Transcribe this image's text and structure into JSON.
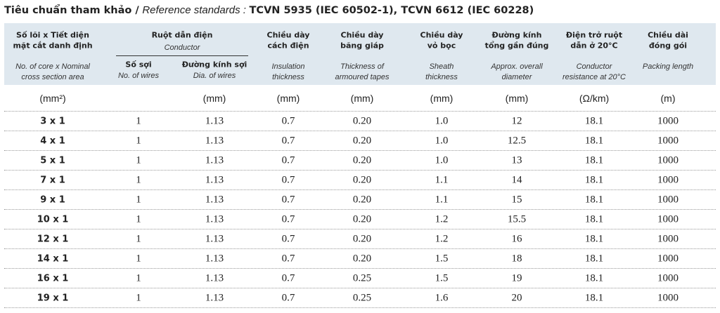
{
  "header": {
    "title": {
      "label": "Tiêu chuẩn tham khảo /",
      "label_en": "Reference standards :",
      "standards": "TCVN 5935 (IEC 60502-1), TCVN 6612 (IEC 60228)"
    }
  },
  "table": {
    "group": {
      "title": "Ruột dẫn điện",
      "subtitle": "Conductor"
    },
    "columns": [
      {
        "title": [
          "Số lõi x Tiết diện",
          "mặt cắt danh định"
        ],
        "subtitle": [
          "No. of core x Nominal",
          "cross section area"
        ],
        "unit": "(mm²)"
      },
      {
        "title": [
          "Số sợi"
        ],
        "subtitle": [
          "No. of wires"
        ]
      },
      {
        "title": [
          "Đường kính sợi"
        ],
        "subtitle": [
          "Dia. of wires"
        ],
        "unit": "(mm)"
      },
      {
        "title": [
          "Chiều dày",
          "cách điện"
        ],
        "subtitle": [
          "Insulation",
          "thickness"
        ],
        "unit": "(mm)"
      },
      {
        "title": [
          "Chiều dày",
          "băng giáp"
        ],
        "subtitle": [
          "Thickness of",
          "armoured tapes"
        ],
        "unit": "(mm)"
      },
      {
        "title": [
          "Chiều dày",
          "vỏ bọc"
        ],
        "subtitle": [
          "Sheath",
          "thickness"
        ],
        "unit": "(mm)"
      },
      {
        "title": [
          "Đường kính",
          "tổng gần đúng"
        ],
        "subtitle": [
          "Approx. overall",
          "diameter"
        ],
        "unit": "(mm)"
      },
      {
        "title": [
          "Điện trở ruột",
          "dẫn ở 20°C"
        ],
        "subtitle": [
          "Conductor",
          "resistance at 20°C"
        ],
        "unit": "(Ω/km)"
      },
      {
        "title": [
          "Chiều dài",
          "đóng gói"
        ],
        "subtitle": [
          "Packing length"
        ],
        "unit": "(m)"
      }
    ],
    "rows": [
      [
        "3 x 1",
        "1",
        "1.13",
        "0.7",
        "0.20",
        "1.0",
        "12",
        "18.1",
        "1000"
      ],
      [
        "4 x 1",
        "1",
        "1.13",
        "0.7",
        "0.20",
        "1.0",
        "12.5",
        "18.1",
        "1000"
      ],
      [
        "5 x 1",
        "1",
        "1.13",
        "0.7",
        "0.20",
        "1.0",
        "13",
        "18.1",
        "1000"
      ],
      [
        "7 x 1",
        "1",
        "1.13",
        "0.7",
        "0.20",
        "1.1",
        "14",
        "18.1",
        "1000"
      ],
      [
        "9 x 1",
        "1",
        "1.13",
        "0.7",
        "0.20",
        "1.1",
        "15",
        "18.1",
        "1000"
      ],
      [
        "10 x 1",
        "1",
        "1.13",
        "0.7",
        "0.20",
        "1.2",
        "15.5",
        "18.1",
        "1000"
      ],
      [
        "12 x 1",
        "1",
        "1.13",
        "0.7",
        "0.20",
        "1.2",
        "16",
        "18.1",
        "1000"
      ],
      [
        "14 x 1",
        "1",
        "1.13",
        "0.7",
        "0.20",
        "1.5",
        "18",
        "18.1",
        "1000"
      ],
      [
        "16 x 1",
        "1",
        "1.13",
        "0.7",
        "0.25",
        "1.5",
        "19",
        "18.1",
        "1000"
      ],
      [
        "19 x 1",
        "1",
        "1.13",
        "0.7",
        "0.25",
        "1.6",
        "20",
        "18.1",
        "1000"
      ]
    ]
  }
}
